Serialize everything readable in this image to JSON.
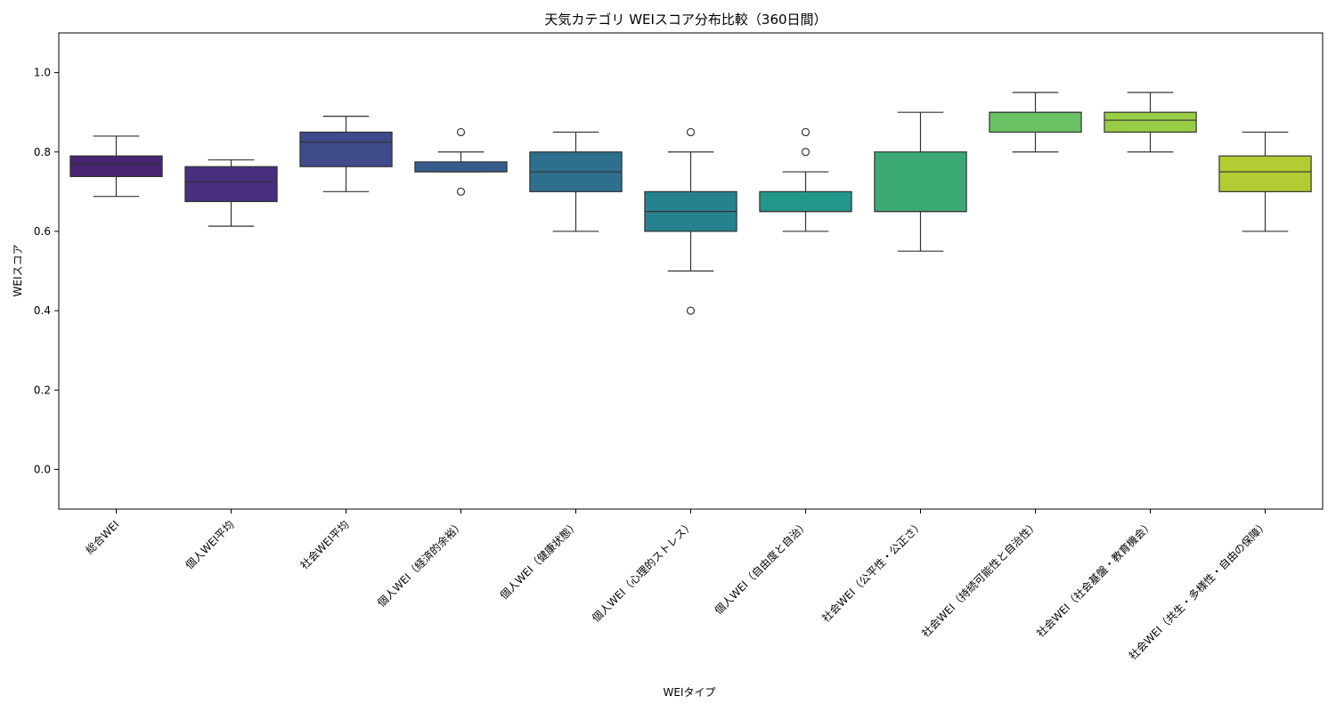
{
  "chart_data": {
    "type": "box",
    "title": "天気カテゴリ WEIスコア分布比較（360日間）",
    "xlabel": "WEIタイプ",
    "ylabel": "WEIスコア",
    "ylim": [
      -0.1,
      1.1
    ],
    "yticks": [
      "0.0",
      "0.2",
      "0.4",
      "0.6",
      "0.8",
      "1.0"
    ],
    "grid": false,
    "categories": [
      "総合WEI",
      "個人WEI平均",
      "社会WEI平均",
      "個人WEI（経済的余裕）",
      "個人WEI（健康状態）",
      "個人WEI（心理的ストレス）",
      "個人WEI（自由度と自治）",
      "社会WEI（公平性・公正さ）",
      "社会WEI（持続可能性と自治性）",
      "社会WEI（社会基盤・教育機会）",
      "社会WEI（共生・多様性・自由の保障）"
    ],
    "boxes": [
      {
        "whisker_low": 0.688,
        "q1": 0.738,
        "median": 0.77,
        "q3": 0.79,
        "whisker_high": 0.84,
        "outliers": [],
        "color": "#482475"
      },
      {
        "whisker_low": 0.613,
        "q1": 0.675,
        "median": 0.725,
        "q3": 0.763,
        "whisker_high": 0.78,
        "outliers": [],
        "color": "#472f7d"
      },
      {
        "whisker_low": 0.7,
        "q1": 0.763,
        "median": 0.825,
        "q3": 0.85,
        "whisker_high": 0.89,
        "outliers": [],
        "color": "#3f4a8a"
      },
      {
        "whisker_low": 0.75,
        "q1": 0.75,
        "median": 0.75,
        "q3": 0.775,
        "whisker_high": 0.8,
        "outliers": [
          0.7,
          0.85
        ],
        "color": "#365c8d"
      },
      {
        "whisker_low": 0.6,
        "q1": 0.7,
        "median": 0.75,
        "q3": 0.8,
        "whisker_high": 0.85,
        "outliers": [],
        "color": "#2e6f8e"
      },
      {
        "whisker_low": 0.5,
        "q1": 0.6,
        "median": 0.65,
        "q3": 0.7,
        "whisker_high": 0.8,
        "outliers": [
          0.4,
          0.85
        ],
        "color": "#26828e"
      },
      {
        "whisker_low": 0.6,
        "q1": 0.65,
        "median": 0.65,
        "q3": 0.7,
        "whisker_high": 0.75,
        "outliers": [
          0.8,
          0.85
        ],
        "color": "#22968b"
      },
      {
        "whisker_low": 0.55,
        "q1": 0.65,
        "median": 0.65,
        "q3": 0.8,
        "whisker_high": 0.9,
        "outliers": [],
        "color": "#3aaa72"
      },
      {
        "whisker_low": 0.8,
        "q1": 0.85,
        "median": 0.9,
        "q3": 0.9,
        "whisker_high": 0.95,
        "outliers": [],
        "color": "#6ac264"
      },
      {
        "whisker_low": 0.8,
        "q1": 0.85,
        "median": 0.88,
        "q3": 0.9,
        "whisker_high": 0.95,
        "outliers": [],
        "color": "#98cd45"
      },
      {
        "whisker_low": 0.6,
        "q1": 0.7,
        "median": 0.75,
        "q3": 0.79,
        "whisker_high": 0.85,
        "outliers": [],
        "color": "#b4cb34"
      }
    ]
  }
}
